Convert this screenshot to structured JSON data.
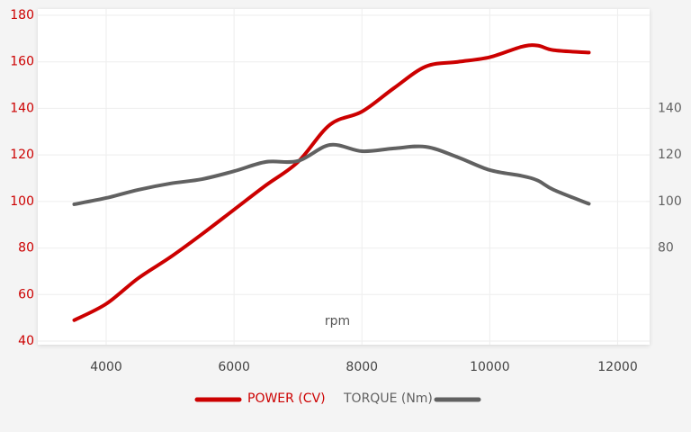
{
  "chart_data": {
    "type": "line",
    "x_label": "rpm",
    "x": [
      3500,
      4000,
      4500,
      5000,
      5500,
      6000,
      6500,
      7000,
      7500,
      8000,
      8500,
      9000,
      9500,
      10000,
      10500,
      10750,
      11000,
      11550
    ],
    "series": [
      {
        "name": "POWER (CV)",
        "color": "#cc0000",
        "axis": "y",
        "values": [
          49,
          56,
          67,
          76,
          86,
          96.5,
          107,
          117,
          133,
          138.6,
          148.7,
          158,
          160,
          162,
          166.5,
          167,
          165,
          164
        ]
      },
      {
        "name": "TORQUE (Nm)",
        "color": "#616161",
        "axis": "y2",
        "values": [
          98.8,
          101.5,
          105,
          107.7,
          109.6,
          113,
          117,
          117.4,
          124.3,
          121.6,
          122.8,
          123.5,
          119,
          113.5,
          111,
          109,
          105,
          99
        ]
      }
    ],
    "xlim": [
      2930,
      12500
    ],
    "xticks": [
      4000,
      6000,
      8000,
      10000,
      12000
    ],
    "ylim": [
      40,
      180
    ],
    "yticks": [
      40,
      60,
      80,
      100,
      120,
      140,
      160,
      180
    ],
    "y2lim": [
      40,
      180
    ],
    "y2ticks": [
      80,
      100,
      120,
      140
    ],
    "grid": true,
    "legend": "bottom"
  }
}
